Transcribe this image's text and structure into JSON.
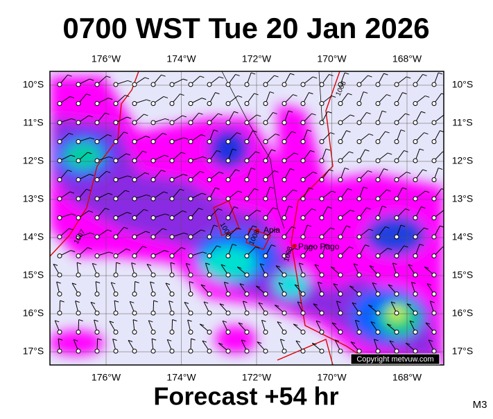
{
  "header": {
    "title": "0700 WST Tue 20 Jan 2026"
  },
  "map": {
    "lon_labels": [
      "176°W",
      "174°W",
      "172°W",
      "170°W",
      "168°W"
    ],
    "lat_labels": [
      "10°S",
      "11°S",
      "12°S",
      "13°S",
      "14°S",
      "15°S",
      "16°S",
      "17°S"
    ],
    "places": [
      "Apia",
      "Pago Pago"
    ],
    "isobar_labels": [
      "1008",
      "1007",
      "1008",
      "1008",
      "1008"
    ],
    "copyright": "Copyright metvuw.com"
  },
  "footer": {
    "forecast": "Forecast +54 hr",
    "model": "M3"
  }
}
